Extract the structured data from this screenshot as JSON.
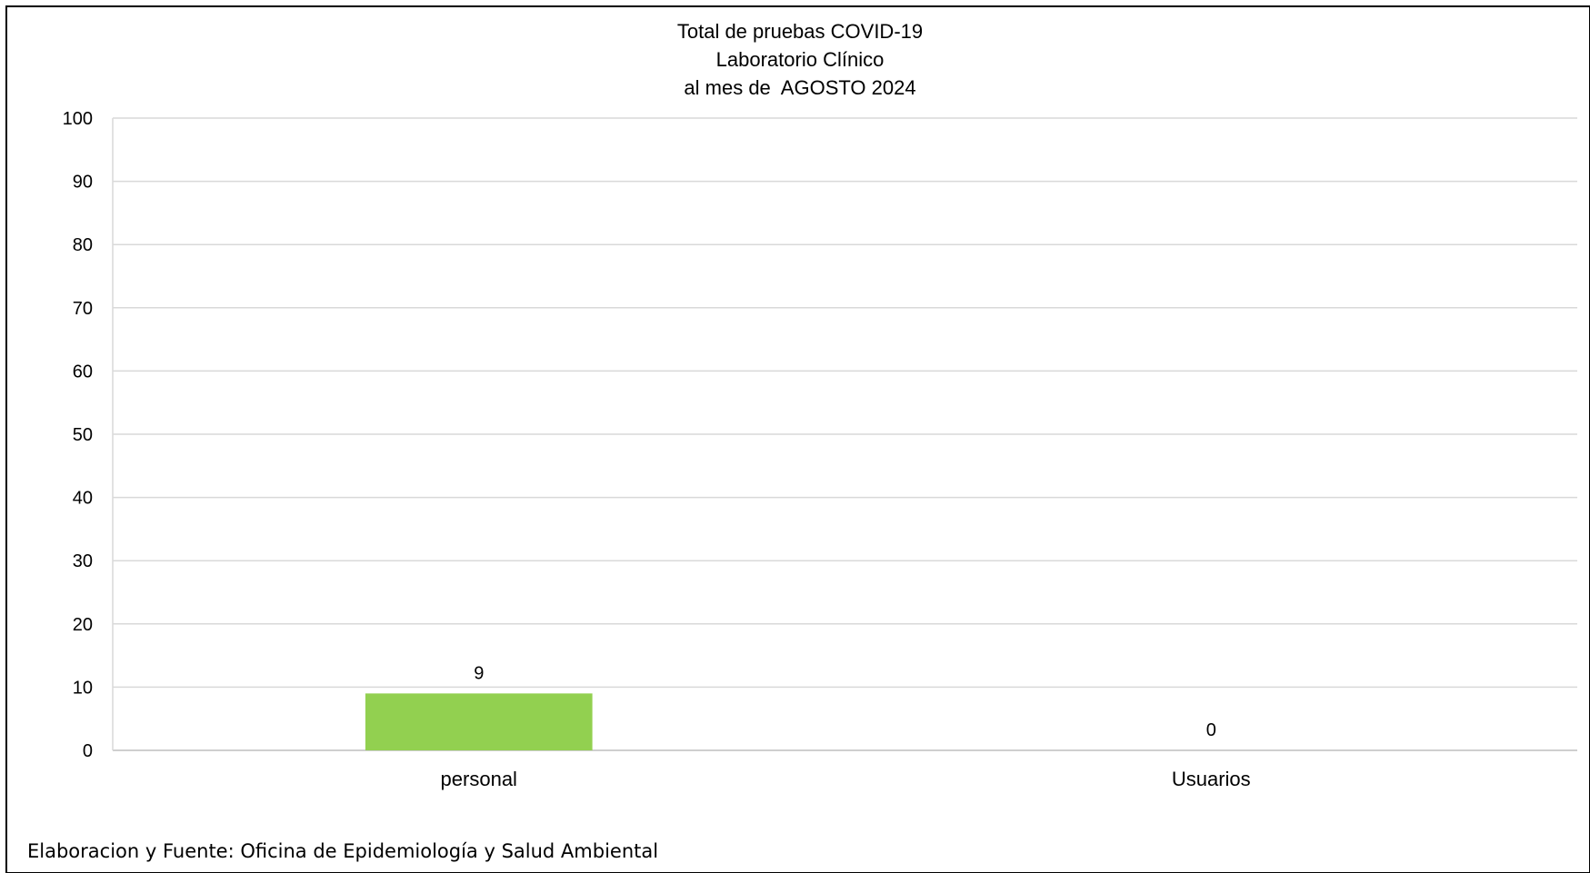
{
  "chart_data": {
    "type": "bar",
    "title": [
      "Total de pruebas COVID-19",
      "Laboratorio Clínico",
      "al mes de  AGOSTO 2024"
    ],
    "categories": [
      "personal",
      "Usuarios"
    ],
    "values": [
      9,
      0
    ],
    "data_labels": [
      "9",
      "0"
    ],
    "ylim": [
      0,
      100
    ],
    "yticks": [
      0,
      10,
      20,
      30,
      40,
      50,
      60,
      70,
      80,
      90,
      100
    ],
    "xlabel": "",
    "ylabel": "",
    "grid": true,
    "legend": "none",
    "bar_color": "#92d050",
    "grid_color": "#d9d9d9"
  },
  "footer": {
    "source": "Elaboracion y Fuente: Oficina de Epidemiología y Salud Ambiental"
  }
}
